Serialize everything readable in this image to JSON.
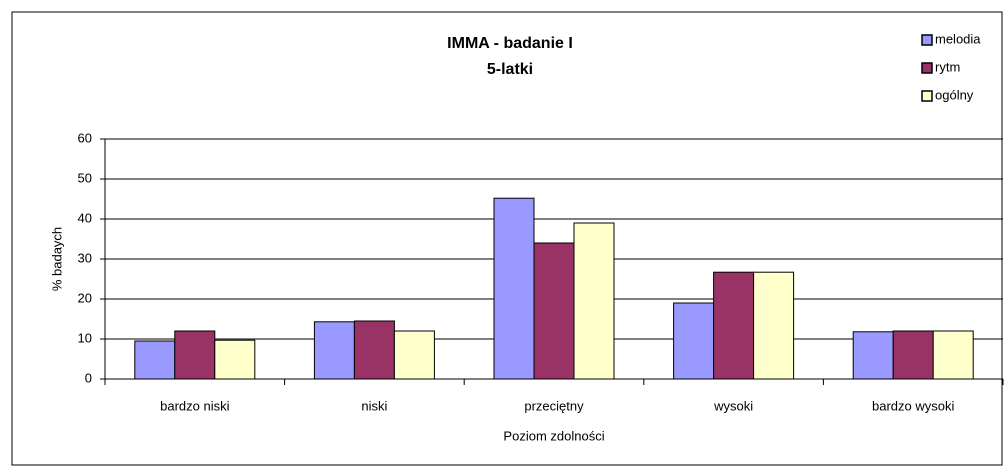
{
  "chart_data": {
    "type": "bar",
    "title": "IMMA - badanie I",
    "subtitle": "5-latki",
    "x_label": "Poziom zdolności",
    "y_label": "% badaych",
    "categories": [
      "bardzo niski",
      "niski",
      "przeciętny",
      "wysoki",
      "bardzo wysoki"
    ],
    "series": [
      {
        "name": "melodia",
        "color": "#9999ff",
        "values": [
          9.5,
          14.3,
          45.2,
          19,
          11.8
        ]
      },
      {
        "name": "rytm",
        "color": "#993366",
        "values": [
          12,
          14.5,
          34,
          26.7,
          12
        ]
      },
      {
        "name": "ogólny",
        "color": "#ffffcc",
        "values": [
          9.7,
          12,
          39,
          26.7,
          12
        ]
      }
    ],
    "ylim": [
      0,
      60
    ],
    "yticks": [
      0,
      10,
      20,
      30,
      40,
      50,
      60
    ],
    "grid": true,
    "legend": "top-right"
  }
}
